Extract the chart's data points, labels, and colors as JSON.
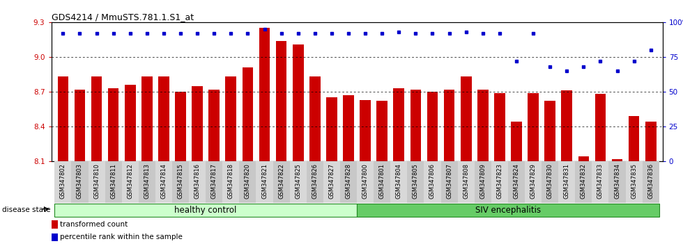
{
  "title": "GDS4214 / MmuSTS.781.1.S1_at",
  "samples": [
    "GSM347802",
    "GSM347803",
    "GSM347810",
    "GSM347811",
    "GSM347812",
    "GSM347813",
    "GSM347814",
    "GSM347815",
    "GSM347816",
    "GSM347817",
    "GSM347818",
    "GSM347820",
    "GSM347821",
    "GSM347822",
    "GSM347825",
    "GSM347826",
    "GSM347827",
    "GSM347828",
    "GSM347800",
    "GSM347801",
    "GSM347804",
    "GSM347805",
    "GSM347806",
    "GSM347807",
    "GSM347808",
    "GSM347809",
    "GSM347823",
    "GSM347824",
    "GSM347829",
    "GSM347830",
    "GSM347831",
    "GSM347832",
    "GSM347833",
    "GSM347834",
    "GSM347835",
    "GSM347836"
  ],
  "bar_values": [
    8.83,
    8.72,
    8.83,
    8.73,
    8.76,
    8.83,
    8.83,
    8.7,
    8.75,
    8.72,
    8.83,
    8.91,
    9.25,
    9.14,
    9.11,
    8.83,
    8.65,
    8.67,
    8.63,
    8.62,
    8.73,
    8.72,
    8.7,
    8.72,
    8.83,
    8.72,
    8.69,
    8.44,
    8.69,
    8.62,
    8.71,
    8.14,
    8.68,
    8.12,
    8.49,
    8.44
  ],
  "percentile_values": [
    92,
    92,
    92,
    92,
    92,
    92,
    92,
    92,
    92,
    92,
    92,
    92,
    95,
    92,
    92,
    92,
    92,
    92,
    92,
    92,
    93,
    92,
    92,
    92,
    93,
    92,
    92,
    72,
    92,
    68,
    65,
    68,
    72,
    65,
    72,
    80
  ],
  "healthy_control_count": 18,
  "siv_count": 18,
  "bar_color": "#cc0000",
  "dot_color": "#0000cc",
  "ylim_left": [
    8.1,
    9.3
  ],
  "ylim_right": [
    0,
    100
  ],
  "yticks_left": [
    8.1,
    8.4,
    8.7,
    9.0,
    9.3
  ],
  "yticks_right": [
    0,
    25,
    50,
    75,
    100
  ],
  "ytick_labels_right": [
    "0",
    "25",
    "50",
    "75",
    "100%"
  ],
  "legend_labels": [
    "transformed count",
    "percentile rank within the sample"
  ],
  "legend_colors": [
    "#cc0000",
    "#0000cc"
  ],
  "healthy_label": "healthy control",
  "siv_label": "SIV encephalitis",
  "disease_state_label": "disease state",
  "healthy_color": "#ccffcc",
  "siv_color": "#66cc66",
  "group_border_color": "#228822",
  "bar_width": 0.65
}
